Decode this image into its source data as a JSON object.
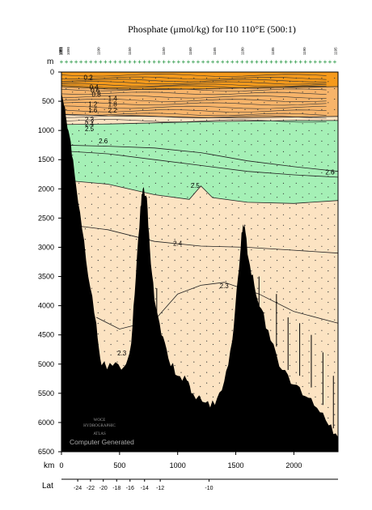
{
  "chart_data": {
    "type": "heatmap",
    "title": "Phosphate (μmol/kg) for I10 110°E (500:1)",
    "axes": {
      "y_unit": "m",
      "x_unit": "km",
      "lat_label": "Lat",
      "y_ticks": [
        0,
        500,
        1000,
        1500,
        2000,
        2500,
        3000,
        3500,
        4000,
        4500,
        5000,
        5500,
        6000,
        6500
      ],
      "x_ticks": [
        0,
        500,
        1000,
        1500,
        2000
      ],
      "lat_ticks": [
        {
          "km": 140,
          "label": "-24"
        },
        {
          "km": 250,
          "label": "-22"
        },
        {
          "km": 360,
          "label": "-20"
        },
        {
          "km": 475,
          "label": "-18"
        },
        {
          "km": 590,
          "label": "-16"
        },
        {
          "km": 715,
          "label": "-14"
        },
        {
          "km": 850,
          "label": "-12"
        },
        {
          "km": 1270,
          "label": "-10"
        }
      ],
      "ylim": [
        0,
        6500
      ],
      "xlim": [
        0,
        2380
      ]
    },
    "station_labels": [
      {
        "km": 0,
        "label": "1081"
      },
      {
        "km": 5,
        "label": "1082"
      },
      {
        "km": 10,
        "label": "1083"
      },
      {
        "km": 70,
        "label": "1090"
      },
      {
        "km": 330,
        "label": "1100"
      },
      {
        "km": 600,
        "label": "1150"
      },
      {
        "km": 890,
        "label": "1150"
      },
      {
        "km": 1120,
        "label": "1160"
      },
      {
        "km": 1330,
        "label": "1165"
      },
      {
        "km": 1570,
        "label": "1180"
      },
      {
        "km": 1830,
        "label": "1185"
      },
      {
        "km": 2100,
        "label": "1190"
      },
      {
        "km": 2370,
        "label": "1195"
      }
    ],
    "contour_labels": [
      {
        "label": "0.2",
        "km": 230,
        "depth": 130
      },
      {
        "label": "0.4",
        "km": 280,
        "depth": 300
      },
      {
        "label": "0.6",
        "km": 290,
        "depth": 350
      },
      {
        "label": "0.8",
        "km": 300,
        "depth": 420
      },
      {
        "label": "1.4",
        "km": 440,
        "depth": 490
      },
      {
        "label": "1.2",
        "km": 270,
        "depth": 590
      },
      {
        "label": "1.8",
        "km": 440,
        "depth": 590
      },
      {
        "label": "1.6",
        "km": 270,
        "depth": 690
      },
      {
        "label": "2.2",
        "km": 440,
        "depth": 690
      },
      {
        "label": "2.3",
        "km": 240,
        "depth": 850
      },
      {
        "label": "2.4",
        "km": 240,
        "depth": 930
      },
      {
        "label": "2.5",
        "km": 240,
        "depth": 1010
      },
      {
        "label": "2.6",
        "km": 360,
        "depth": 1220
      },
      {
        "label": "2.6",
        "km": 2310,
        "depth": 1750
      },
      {
        "label": "2.5",
        "km": 1150,
        "depth": 1980
      },
      {
        "label": "2.4",
        "km": 1000,
        "depth": 2970
      },
      {
        "label": "2.3",
        "km": 1400,
        "depth": 3700
      },
      {
        "label": "2.3",
        "km": 520,
        "depth": 4850
      }
    ],
    "fill_levels": [
      {
        "range": "<0.8",
        "color": "#F59A1C"
      },
      {
        "range": "0.8-2.2",
        "color": "#F7B46A"
      },
      {
        "range": "2.2-2.5",
        "color": "#FCE3C2"
      },
      {
        "range": "2.5-2.6",
        "color": "#A5F0B6"
      },
      {
        "range": ">2.6",
        "color": "#FCE3C2"
      }
    ],
    "bathymetry": [
      {
        "km": 0,
        "depth": 350
      },
      {
        "km": 30,
        "depth": 600
      },
      {
        "km": 60,
        "depth": 1000
      },
      {
        "km": 100,
        "depth": 1500
      },
      {
        "km": 160,
        "depth": 2400
      },
      {
        "km": 230,
        "depth": 3500
      },
      {
        "km": 300,
        "depth": 4300
      },
      {
        "km": 345,
        "depth": 5020
      },
      {
        "km": 440,
        "depth": 5030
      },
      {
        "km": 540,
        "depth": 5040
      },
      {
        "km": 600,
        "depth": 4650
      },
      {
        "km": 640,
        "depth": 3500
      },
      {
        "km": 680,
        "depth": 2300
      },
      {
        "km": 700,
        "depth": 2000
      },
      {
        "km": 735,
        "depth": 2150
      },
      {
        "km": 760,
        "depth": 3000
      },
      {
        "km": 800,
        "depth": 3900
      },
      {
        "km": 860,
        "depth": 4500
      },
      {
        "km": 920,
        "depth": 4900
      },
      {
        "km": 1000,
        "depth": 5200
      },
      {
        "km": 1080,
        "depth": 5280
      },
      {
        "km": 1130,
        "depth": 5500
      },
      {
        "km": 1240,
        "depth": 5660
      },
      {
        "km": 1320,
        "depth": 5700
      },
      {
        "km": 1400,
        "depth": 5300
      },
      {
        "km": 1470,
        "depth": 4600
      },
      {
        "km": 1520,
        "depth": 3500
      },
      {
        "km": 1550,
        "depth": 2750
      },
      {
        "km": 1575,
        "depth": 2600
      },
      {
        "km": 1610,
        "depth": 3200
      },
      {
        "km": 1660,
        "depth": 3650
      },
      {
        "km": 1720,
        "depth": 4050
      },
      {
        "km": 1800,
        "depth": 4600
      },
      {
        "km": 1900,
        "depth": 5100
      },
      {
        "km": 2000,
        "depth": 5350
      },
      {
        "km": 2100,
        "depth": 5550
      },
      {
        "km": 2200,
        "depth": 5750
      },
      {
        "km": 2300,
        "depth": 6050
      },
      {
        "km": 2380,
        "depth": 6250
      }
    ],
    "isolines": {
      "0.8": [
        [
          0,
          250
        ],
        [
          400,
          290
        ],
        [
          800,
          300
        ],
        [
          1200,
          290
        ],
        [
          1600,
          270
        ],
        [
          2000,
          260
        ],
        [
          2380,
          250
        ]
      ],
      "2.2": [
        [
          0,
          720
        ],
        [
          400,
          750
        ],
        [
          800,
          760
        ],
        [
          1200,
          780
        ],
        [
          1600,
          780
        ],
        [
          2000,
          770
        ],
        [
          2380,
          760
        ]
      ],
      "2.5 upper": [
        [
          0,
          900
        ],
        [
          400,
          890
        ],
        [
          800,
          870
        ],
        [
          1200,
          850
        ],
        [
          1600,
          840
        ],
        [
          2000,
          830
        ],
        [
          2380,
          830
        ]
      ],
      "2.6 upper": [
        [
          0,
          1250
        ],
        [
          400,
          1270
        ],
        [
          800,
          1300
        ],
        [
          1200,
          1380
        ],
        [
          1600,
          1520
        ],
        [
          2000,
          1620
        ],
        [
          2380,
          1700
        ]
      ],
      "2.6 lower": [
        [
          0,
          1350
        ],
        [
          400,
          1400
        ],
        [
          800,
          1500
        ],
        [
          1200,
          1600
        ],
        [
          1600,
          1700
        ],
        [
          2000,
          1760
        ],
        [
          2380,
          1800
        ]
      ],
      "2.5 lower": [
        [
          0,
          1850
        ],
        [
          400,
          1920
        ],
        [
          800,
          2100
        ],
        [
          1100,
          2180
        ],
        [
          1200,
          1950
        ],
        [
          1300,
          2150
        ],
        [
          1600,
          2230
        ],
        [
          2000,
          2250
        ],
        [
          2380,
          2200
        ]
      ],
      "2.4": [
        [
          0,
          2600
        ],
        [
          400,
          2700
        ],
        [
          800,
          2900
        ],
        [
          1200,
          2980
        ],
        [
          1600,
          3000
        ],
        [
          2000,
          3050
        ],
        [
          2380,
          3100
        ]
      ],
      "2.3": [
        [
          300,
          4200
        ],
        [
          500,
          4400
        ],
        [
          800,
          4250
        ],
        [
          1000,
          3800
        ],
        [
          1200,
          3650
        ],
        [
          1400,
          3600
        ],
        [
          1700,
          3800
        ],
        [
          2000,
          4100
        ],
        [
          2380,
          4300
        ]
      ]
    },
    "grid": false,
    "legend": "none",
    "watermark_text": [
      "WOCE",
      "HYDROGRAPHIC",
      "ATLAS"
    ],
    "credit": "Computer Generated"
  }
}
